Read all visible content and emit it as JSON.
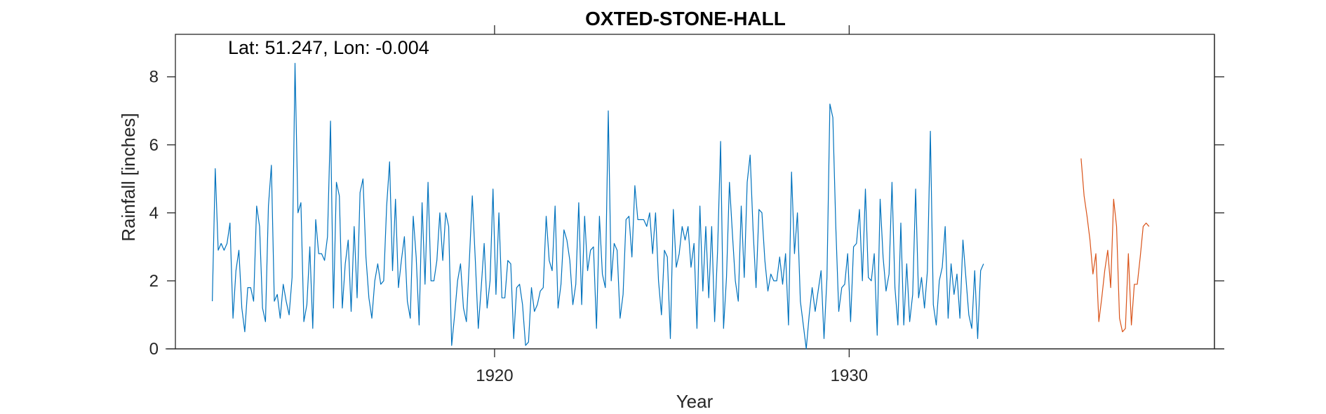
{
  "chart_data": {
    "type": "line",
    "title": "OXTED-STONE-HALL",
    "annotation": "Lat: 51.247, Lon: -0.004",
    "xlabel": "Year",
    "ylabel": "Rainfall [inches]",
    "xlim": [
      1911,
      1940.3
    ],
    "ylim": [
      0,
      9.25
    ],
    "xticks": [
      1920,
      1930
    ],
    "xtick_labels": [
      "1920",
      "1930"
    ],
    "yticks": [
      0,
      2,
      4,
      6,
      8
    ],
    "ytick_labels": [
      "0",
      "2",
      "4",
      "6",
      "8"
    ],
    "grid": false,
    "colors": {
      "series1": "#0072BD",
      "series2": "#D95319",
      "axes": "#262626"
    },
    "series": [
      {
        "color": "#0072BD",
        "x_start": 1912.04,
        "x_step": 0.0833333,
        "values": [
          1.4,
          5.3,
          2.9,
          3.1,
          2.9,
          3.1,
          3.7,
          0.9,
          2.3,
          2.9,
          1.2,
          0.5,
          1.8,
          1.8,
          1.4,
          4.2,
          3.6,
          1.2,
          0.8,
          4.2,
          5.4,
          1.4,
          1.6,
          0.9,
          1.9,
          1.4,
          1.0,
          2.1,
          8.4,
          4.0,
          4.3,
          0.8,
          1.3,
          3.0,
          0.6,
          3.8,
          2.8,
          2.8,
          2.6,
          3.3,
          6.7,
          1.2,
          4.9,
          4.5,
          1.2,
          2.5,
          3.2,
          1.1,
          3.6,
          1.5,
          4.6,
          5.0,
          2.7,
          1.5,
          0.9,
          2.0,
          2.5,
          1.9,
          2.0,
          4.2,
          5.5,
          2.3,
          4.4,
          1.8,
          2.6,
          3.3,
          1.4,
          0.9,
          3.9,
          2.7,
          0.7,
          4.3,
          1.9,
          4.9,
          2.0,
          2.0,
          2.6,
          4.0,
          2.6,
          4.0,
          3.6,
          0.1,
          1.0,
          2.0,
          2.5,
          1.2,
          0.8,
          2.6,
          4.5,
          2.6,
          0.6,
          1.8,
          3.1,
          1.2,
          2.0,
          4.7,
          1.6,
          4.0,
          1.5,
          1.5,
          2.6,
          2.5,
          0.3,
          1.8,
          1.9,
          1.3,
          0.1,
          0.2,
          1.8,
          1.1,
          1.3,
          1.7,
          1.8,
          3.9,
          2.6,
          2.3,
          4.2,
          1.2,
          1.9,
          3.5,
          3.2,
          2.6,
          1.3,
          1.9,
          4.3,
          1.3,
          3.9,
          2.3,
          2.9,
          3.0,
          0.6,
          3.9,
          2.2,
          1.8,
          7.0,
          2.0,
          3.1,
          2.9,
          0.9,
          1.6,
          3.8,
          3.9,
          2.7,
          4.8,
          3.8,
          3.8,
          3.8,
          3.6,
          4.0,
          2.8,
          4.0,
          2.0,
          1.0,
          2.9,
          2.7,
          0.3,
          4.1,
          2.4,
          2.8,
          3.6,
          3.2,
          3.6,
          2.4,
          3.1,
          0.6,
          4.2,
          1.7,
          3.6,
          1.5,
          3.6,
          0.8,
          2.9,
          6.1,
          0.6,
          2.1,
          4.9,
          3.4,
          2.0,
          1.4,
          4.2,
          2.1,
          4.9,
          5.7,
          3.5,
          1.8,
          4.1,
          4.0,
          2.6,
          1.7,
          2.2,
          2.0,
          2.0,
          2.7,
          1.9,
          2.8,
          0.7,
          5.2,
          2.8,
          4.0,
          1.4,
          0.7,
          0.0,
          1.0,
          1.8,
          1.1,
          1.7,
          2.3,
          0.3,
          2.1,
          7.2,
          6.8,
          3.6,
          1.1,
          1.8,
          1.9,
          2.8,
          0.8,
          3.0,
          3.1,
          4.1,
          2.0,
          4.7,
          2.1,
          2.0,
          2.8,
          0.4,
          4.4,
          2.7,
          1.7,
          2.2,
          4.9,
          1.8,
          0.7,
          3.7,
          0.7,
          2.5,
          0.8,
          1.6,
          4.7,
          1.5,
          2.1,
          1.2,
          2.3,
          6.4,
          1.3,
          0.7,
          2.0,
          2.4,
          3.6,
          0.9,
          2.5,
          1.6,
          2.2,
          0.9,
          3.2,
          2.1,
          1.0,
          0.6,
          2.3,
          0.3,
          2.3,
          2.5
        ]
      },
      {
        "color": "#D95319",
        "x_start": 1936.54,
        "x_step": 0.0833333,
        "values": [
          5.6,
          4.5,
          3.9,
          3.2,
          2.2,
          2.8,
          0.8,
          1.5,
          2.3,
          2.9,
          1.8,
          4.4,
          3.6,
          0.9,
          0.5,
          0.6,
          2.8,
          0.7,
          1.9,
          1.9,
          2.7,
          3.6,
          3.7,
          3.6
        ]
      }
    ]
  }
}
